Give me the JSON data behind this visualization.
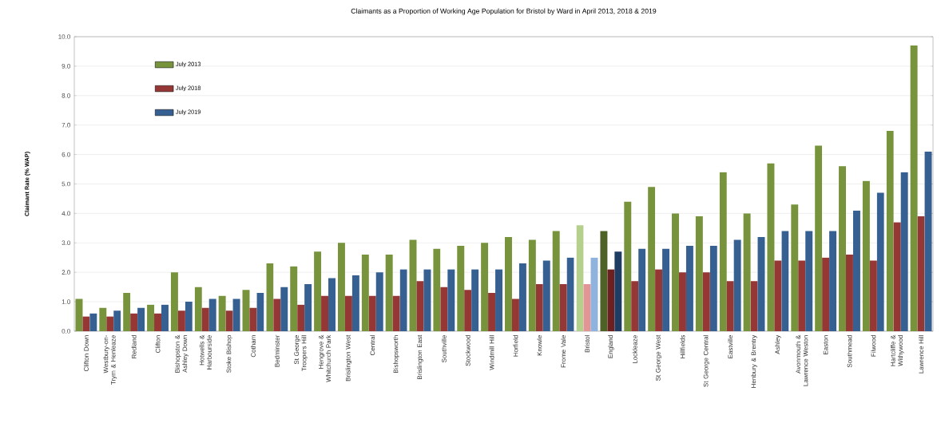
{
  "chart_data": {
    "type": "bar",
    "title": "Claimants as a Proportion of Working Age Population for Bristol by Ward in April 2013, 2018 & 2019",
    "ylabel": "Claimant Rate (% WAP)",
    "categories": [
      "Clifton Down",
      "Westbury-on-Trym & Henleaze",
      "Redland",
      "Clifton",
      "Bishopston & Ashley Down",
      "Hotwells & Harbourside",
      "Stoke Bishop",
      "Cotham",
      "Bedminster",
      "St George Troopers Hill",
      "Hengrove & Whitchurch Park",
      "Brislington West",
      "Central",
      "Bishopsworth",
      "Brislington East",
      "Southville",
      "Stockwood",
      "Windmill Hill",
      "Horfield",
      "Knowle",
      "Frome Vale",
      "Bristol",
      "England",
      "Lockleaze",
      "St George West",
      "Hillfields",
      "St George Central",
      "Eastville",
      "Henbury & Brentry",
      "Ashley",
      "Avonmouth & Lawrence Weston",
      "Easton",
      "Southmead",
      "Filwood",
      "Hartcliffe & Withywood",
      "Lawrence Hill"
    ],
    "series": [
      {
        "name": "July 2013",
        "color": "#77933c",
        "colors": [
          "#77933c",
          "#77933c",
          "#77933c",
          "#77933c",
          "#77933c",
          "#77933c",
          "#77933c",
          "#77933c",
          "#77933c",
          "#77933c",
          "#77933c",
          "#77933c",
          "#77933c",
          "#77933c",
          "#77933c",
          "#77933c",
          "#77933c",
          "#77933c",
          "#77933c",
          "#77933c",
          "#77933c",
          "#b5d08c",
          "#4e6228",
          "#77933c",
          "#77933c",
          "#77933c",
          "#77933c",
          "#77933c",
          "#77933c",
          "#77933c",
          "#77933c",
          "#77933c",
          "#77933c",
          "#77933c",
          "#77933c",
          "#77933c"
        ],
        "values": [
          1.1,
          0.8,
          1.3,
          0.9,
          2.0,
          1.5,
          1.2,
          1.4,
          2.3,
          2.2,
          2.7,
          3.0,
          2.6,
          2.6,
          3.1,
          2.8,
          2.9,
          3.0,
          3.2,
          3.1,
          3.4,
          3.6,
          3.4,
          4.4,
          4.9,
          4.0,
          3.9,
          5.4,
          4.0,
          5.7,
          4.3,
          6.3,
          5.6,
          5.1,
          6.8,
          9.7
        ]
      },
      {
        "name": "July 2018",
        "color": "#953735",
        "colors": [
          "#953735",
          "#953735",
          "#953735",
          "#953735",
          "#953735",
          "#953735",
          "#953735",
          "#953735",
          "#953735",
          "#953735",
          "#953735",
          "#953735",
          "#953735",
          "#953735",
          "#953735",
          "#953735",
          "#953735",
          "#953735",
          "#953735",
          "#953735",
          "#953735",
          "#e39595",
          "#6e2020",
          "#953735",
          "#953735",
          "#953735",
          "#953735",
          "#953735",
          "#953735",
          "#953735",
          "#953735",
          "#953735",
          "#953735",
          "#953735",
          "#953735",
          "#953735"
        ],
        "values": [
          0.5,
          0.5,
          0.6,
          0.6,
          0.7,
          0.8,
          0.7,
          0.8,
          1.1,
          0.9,
          1.2,
          1.2,
          1.2,
          1.2,
          1.7,
          1.5,
          1.4,
          1.3,
          1.1,
          1.6,
          1.6,
          1.6,
          2.1,
          1.7,
          2.1,
          2.0,
          2.0,
          1.7,
          1.7,
          2.4,
          2.4,
          2.5,
          2.6,
          2.4,
          3.7,
          3.9
        ]
      },
      {
        "name": "July 2019",
        "color": "#376092",
        "colors": [
          "#376092",
          "#376092",
          "#376092",
          "#376092",
          "#376092",
          "#376092",
          "#376092",
          "#376092",
          "#376092",
          "#376092",
          "#376092",
          "#376092",
          "#376092",
          "#376092",
          "#376092",
          "#376092",
          "#376092",
          "#376092",
          "#376092",
          "#376092",
          "#376092",
          "#8fb3dd",
          "#1f3d63",
          "#376092",
          "#376092",
          "#376092",
          "#376092",
          "#376092",
          "#376092",
          "#376092",
          "#376092",
          "#376092",
          "#376092",
          "#376092",
          "#376092",
          "#376092"
        ],
        "values": [
          0.6,
          0.7,
          0.8,
          0.9,
          1.0,
          1.1,
          1.1,
          1.3,
          1.5,
          1.6,
          1.8,
          1.9,
          2.0,
          2.1,
          2.1,
          2.1,
          2.1,
          2.1,
          2.3,
          2.4,
          2.5,
          2.5,
          2.7,
          2.8,
          2.8,
          2.9,
          2.9,
          3.1,
          3.2,
          3.4,
          3.4,
          3.4,
          4.1,
          4.7,
          5.4,
          6.1
        ]
      }
    ],
    "ylim": [
      0,
      10
    ],
    "yticks": [
      {
        "value": 0,
        "label": "0.0"
      },
      {
        "value": 1,
        "label": "1.0"
      },
      {
        "value": 2,
        "label": "2.0"
      },
      {
        "value": 3,
        "label": "3.0"
      },
      {
        "value": 4,
        "label": "4.0"
      },
      {
        "value": 5,
        "label": "5.0"
      },
      {
        "value": 6,
        "label": "6.0"
      },
      {
        "value": 7,
        "label": "7.0"
      },
      {
        "value": 8,
        "label": "8.0"
      },
      {
        "value": 9,
        "label": "9.0"
      },
      {
        "value": 10,
        "label": "10.0"
      }
    ],
    "grid": "y",
    "legend": "top left"
  }
}
